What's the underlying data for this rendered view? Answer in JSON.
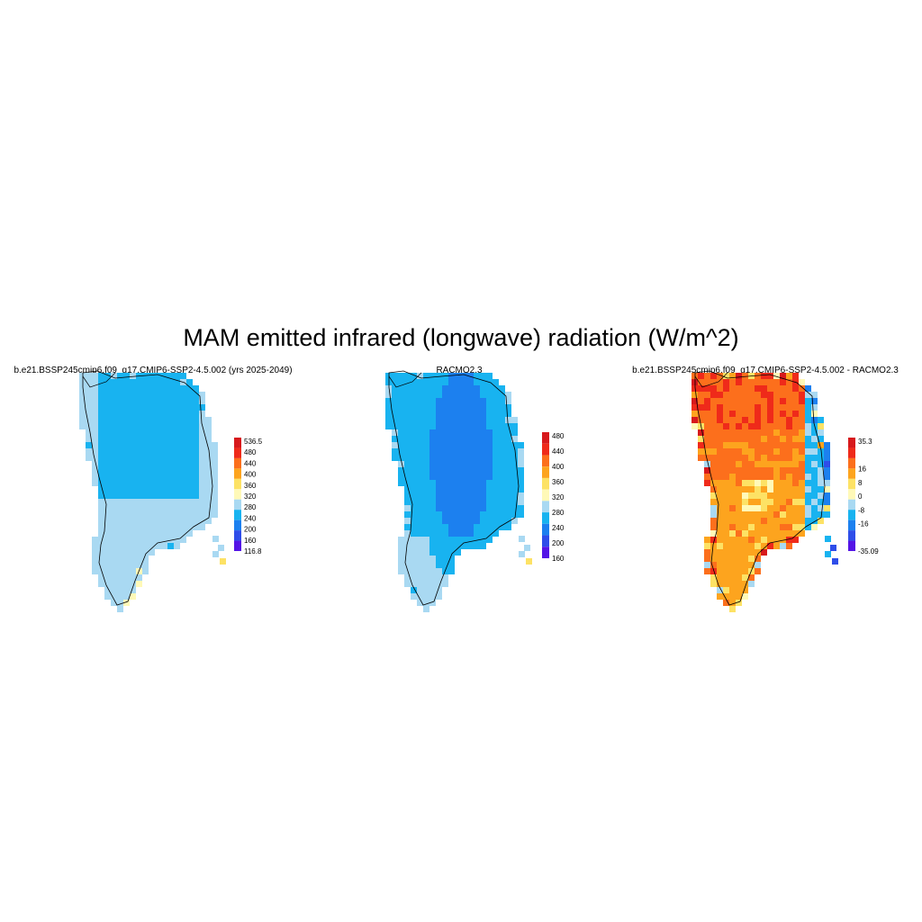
{
  "figure": {
    "title": "MAM emitted infrared (longwave) radiation (W/m^2)"
  },
  "panels": [
    {
      "title": "b.e21.BSSP245cmip6.f09_g17.CMIP6-SSP2-4.5.002 (yrs 2025-2049)",
      "map_kind": "model",
      "colorbar": {
        "labels": [
          "536.5",
          "480",
          "440",
          "400",
          "360",
          "320",
          "280",
          "240",
          "200",
          "160",
          "116.8"
        ],
        "colors": [
          "#d7191c",
          "#ef2a1a",
          "#fc6f1c",
          "#fda41e",
          "#fde265",
          "#fff9b8",
          "#a9d9f2",
          "#18b3f0",
          "#1c80ef",
          "#2e4de9",
          "#5414e6"
        ]
      }
    },
    {
      "title": "RACMO2.3",
      "map_kind": "obs",
      "colorbar": {
        "labels": [
          "480",
          "440",
          "400",
          "360",
          "320",
          "280",
          "240",
          "200",
          "160"
        ],
        "colors": [
          "#d7191c",
          "#ef2a1a",
          "#fc6f1c",
          "#fda41e",
          "#fde265",
          "#fff9b8",
          "#a9d9f2",
          "#18b3f0",
          "#1c80ef",
          "#2e4de9",
          "#5414e6"
        ]
      }
    },
    {
      "title": "b.e21.BSSP245cmip6.f09_g17.CMIP6-SSP2-4.5.002 - RACMO2.3",
      "map_kind": "diff",
      "colorbar": {
        "labels": [
          "35.3",
          "",
          "16",
          "8",
          "0",
          "-8",
          "-16",
          "",
          "-35.09"
        ],
        "colors": [
          "#d7191c",
          "#ef2a1a",
          "#fc6f1c",
          "#fda41e",
          "#fde265",
          "#fff9b8",
          "#a9d9f2",
          "#18b3f0",
          "#1c80ef",
          "#2e4de9",
          "#5414e6"
        ]
      }
    }
  ],
  "chart_data": {
    "type": "heatmap",
    "title": "MAM emitted infrared (longwave) radiation (W/m^2)",
    "variable": "emitted infrared (longwave) radiation",
    "units": "W/m^2",
    "season": "MAM",
    "panels": [
      {
        "name": "b.e21.BSSP245cmip6.f09_g17.CMIP6-SSP2-4.5.002 (yrs 2025-2049)",
        "range": [
          116.8,
          536.5
        ],
        "levels": [
          160,
          200,
          240,
          280,
          320,
          360,
          400,
          440,
          480
        ],
        "typical_ice_sheet_interior": 260,
        "typical_margin": 290,
        "southern_tip": 300
      },
      {
        "name": "RACMO2.3",
        "levels": [
          160,
          200,
          240,
          280,
          320,
          360,
          400,
          440,
          480
        ],
        "typical_ice_sheet_interior": 215,
        "typical_margin": 270,
        "southern_tip": 290
      },
      {
        "name": "b.e21.BSSP245cmip6.f09_g17.CMIP6-SSP2-4.5.002 - RACMO2.3",
        "range": [
          -35.09,
          35.3
        ],
        "levels": [
          -16,
          -8,
          0,
          8,
          16
        ],
        "typical_north": 20,
        "typical_central": 12,
        "typical_south": 8,
        "east_margin": -10
      }
    ]
  }
}
